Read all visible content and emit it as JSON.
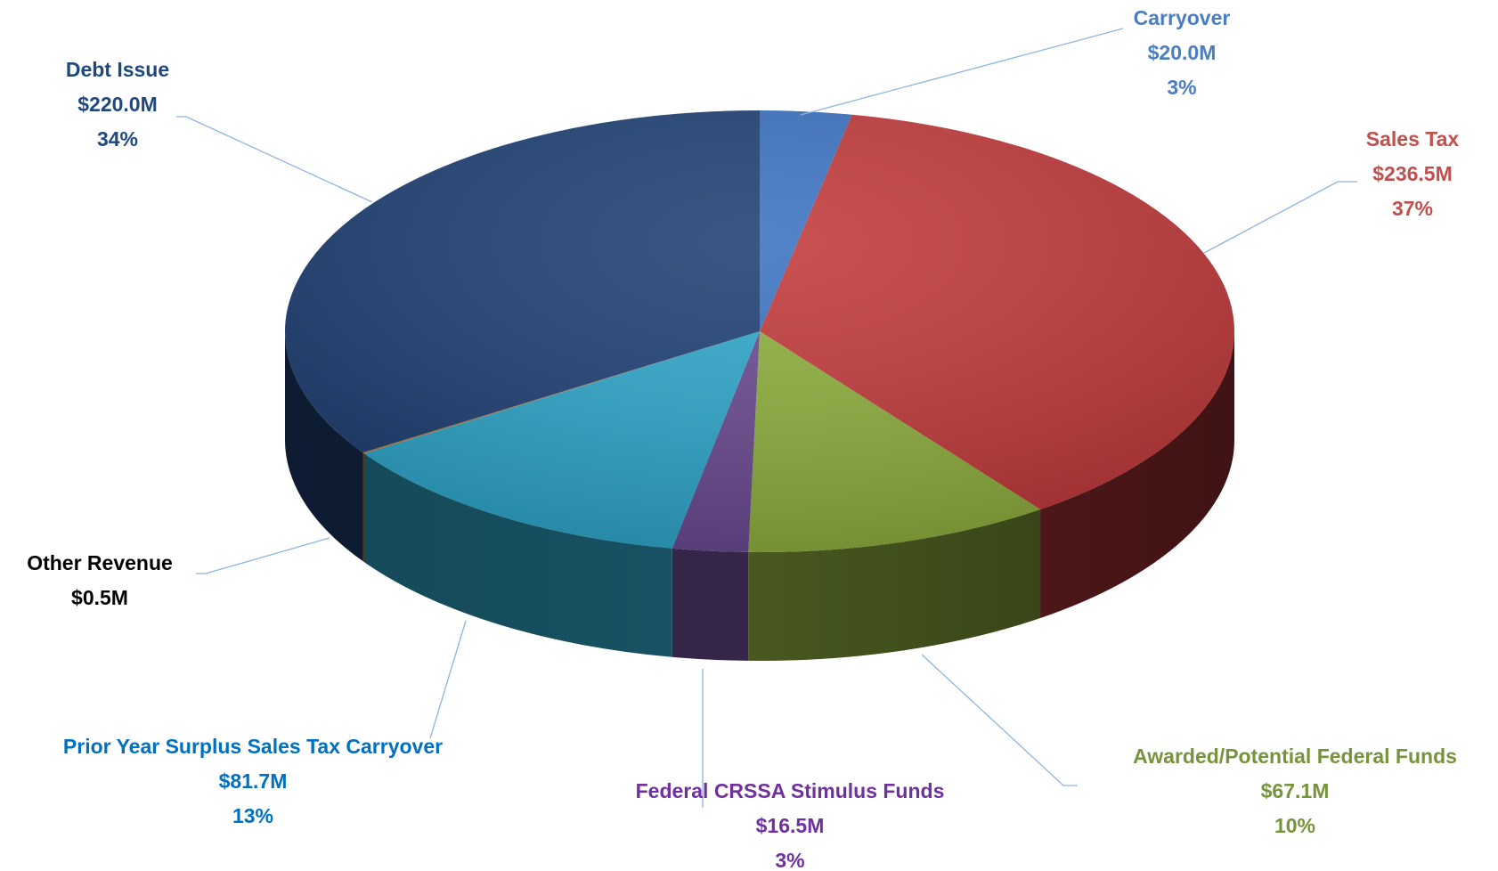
{
  "chart_data": {
    "type": "pie3d",
    "categories": [
      "Carryover",
      "Sales Tax",
      "Awarded/Potential Federal Funds",
      "Federal CRSSA Stimulus Funds",
      "Prior Year Surplus Sales Tax Carryover",
      "Other Revenue",
      "Debt Issue"
    ],
    "values": [
      20.0,
      236.5,
      67.1,
      16.5,
      81.7,
      0.5,
      220.0
    ],
    "value_labels": [
      "$20.0M",
      "$236.5M",
      "$67.1M",
      "$16.5M",
      "$81.7M",
      "$0.5M",
      "$220.0M"
    ],
    "percent_labels": [
      "3%",
      "37%",
      "10%",
      "3%",
      "13%",
      null,
      "34%"
    ],
    "colors": [
      "#3b72c2",
      "#c23a3b",
      "#8fb03e",
      "#6b4b92",
      "#2fa8cc",
      "#d07a30",
      "#1f4074"
    ],
    "label_colors": [
      "#4a7ec2",
      "#c0504d",
      "#77933c",
      "#7030a0",
      "#0070c0",
      "#000000",
      "#1f497d"
    ]
  }
}
